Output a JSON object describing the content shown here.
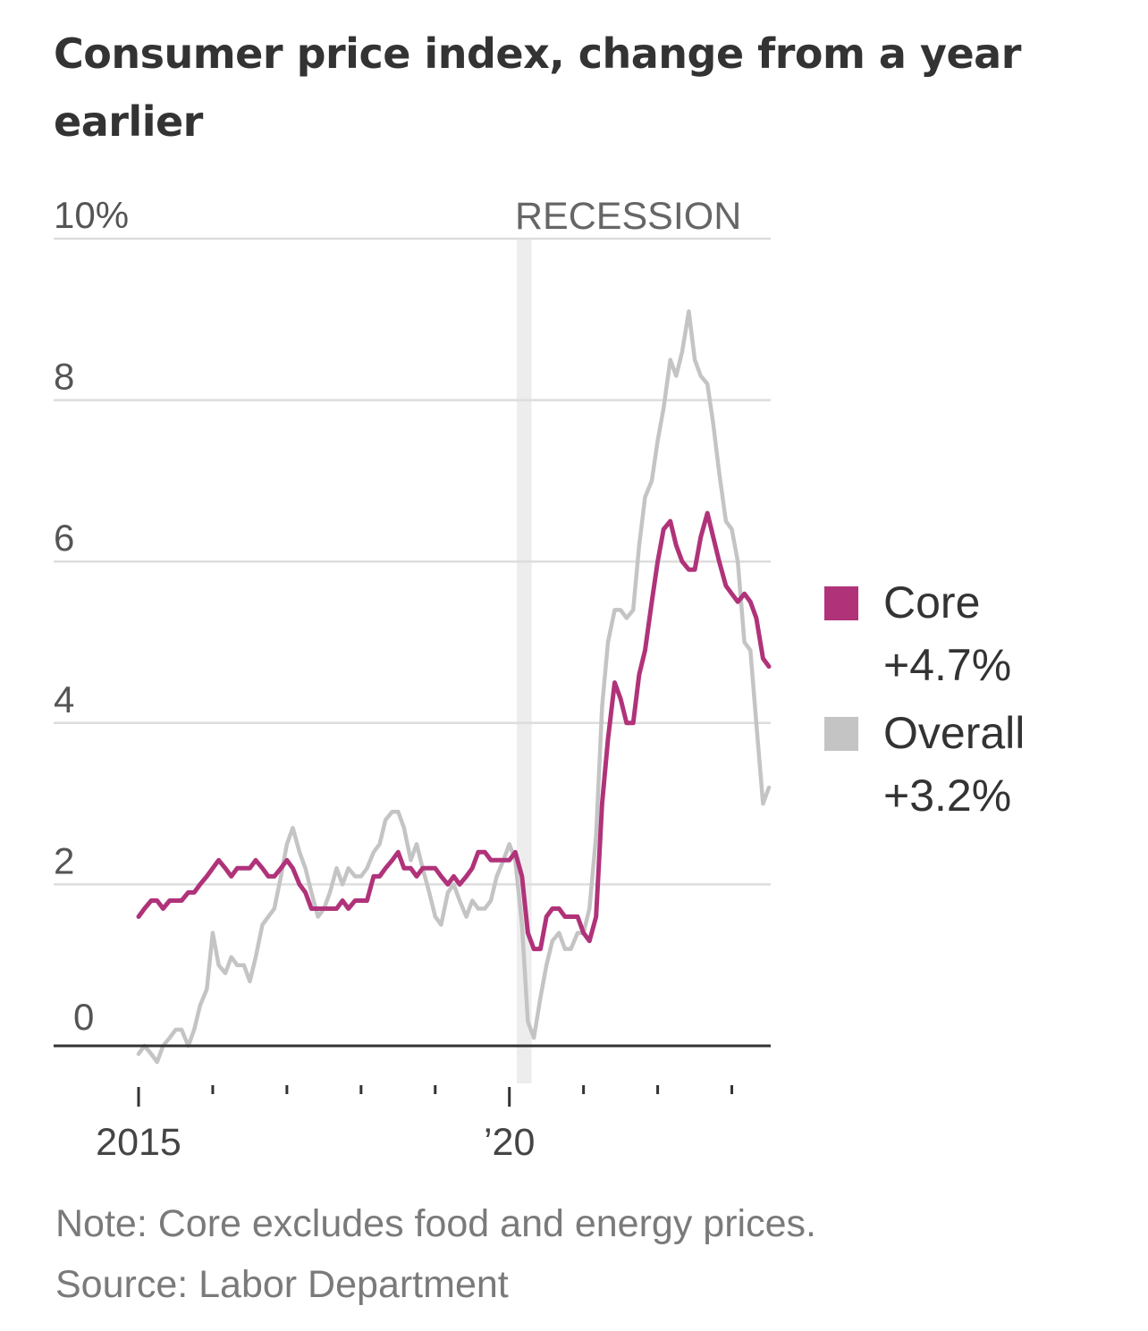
{
  "title": "Consumer price index, change from a year earlier",
  "note": "Note: Core excludes food and energy prices.",
  "source": "Source: Labor Department",
  "colors": {
    "core": "#b0337a",
    "overall": "#c4c4c4",
    "grid": "#dddddd",
    "recession": "#ededed"
  },
  "chart_data": {
    "type": "line",
    "title": "Consumer price index, change from a year earlier",
    "ylim": [
      0,
      10
    ],
    "y_ticks": [
      10,
      8,
      6,
      4,
      2,
      0
    ],
    "y_tick_labels": [
      "10%",
      "8",
      "6",
      "4",
      "2",
      "0"
    ],
    "x_range": [
      2015.0,
      2023.5
    ],
    "x_ticks": [
      2015,
      2016,
      2017,
      2018,
      2019,
      2020,
      2021,
      2022,
      2023
    ],
    "x_tick_labels": [
      {
        "x": 2015,
        "label": "2015"
      },
      {
        "x": 2020,
        "label": "’20"
      }
    ],
    "recession": {
      "label": "RECESSION",
      "start": 2020.1,
      "end": 2020.3
    },
    "legend": [
      {
        "series": "Core",
        "label": "Core",
        "value_label": "+4.7%"
      },
      {
        "series": "Overall",
        "label": "Overall",
        "value_label": "+3.2%"
      }
    ],
    "series": [
      {
        "name": "Core",
        "points": [
          [
            2015.0,
            1.6
          ],
          [
            2015.08,
            1.7
          ],
          [
            2015.17,
            1.8
          ],
          [
            2015.25,
            1.8
          ],
          [
            2015.33,
            1.7
          ],
          [
            2015.42,
            1.8
          ],
          [
            2015.5,
            1.8
          ],
          [
            2015.58,
            1.8
          ],
          [
            2015.67,
            1.9
          ],
          [
            2015.75,
            1.9
          ],
          [
            2015.83,
            2.0
          ],
          [
            2015.92,
            2.1
          ],
          [
            2016.0,
            2.2
          ],
          [
            2016.08,
            2.3
          ],
          [
            2016.17,
            2.2
          ],
          [
            2016.25,
            2.1
          ],
          [
            2016.33,
            2.2
          ],
          [
            2016.42,
            2.2
          ],
          [
            2016.5,
            2.2
          ],
          [
            2016.58,
            2.3
          ],
          [
            2016.67,
            2.2
          ],
          [
            2016.75,
            2.1
          ],
          [
            2016.83,
            2.1
          ],
          [
            2016.92,
            2.2
          ],
          [
            2017.0,
            2.3
          ],
          [
            2017.08,
            2.2
          ],
          [
            2017.17,
            2.0
          ],
          [
            2017.25,
            1.9
          ],
          [
            2017.33,
            1.7
          ],
          [
            2017.42,
            1.7
          ],
          [
            2017.5,
            1.7
          ],
          [
            2017.58,
            1.7
          ],
          [
            2017.67,
            1.7
          ],
          [
            2017.75,
            1.8
          ],
          [
            2017.83,
            1.7
          ],
          [
            2017.92,
            1.8
          ],
          [
            2018.0,
            1.8
          ],
          [
            2018.08,
            1.8
          ],
          [
            2018.17,
            2.1
          ],
          [
            2018.25,
            2.1
          ],
          [
            2018.33,
            2.2
          ],
          [
            2018.42,
            2.3
          ],
          [
            2018.5,
            2.4
          ],
          [
            2018.58,
            2.2
          ],
          [
            2018.67,
            2.2
          ],
          [
            2018.75,
            2.1
          ],
          [
            2018.83,
            2.2
          ],
          [
            2018.92,
            2.2
          ],
          [
            2019.0,
            2.2
          ],
          [
            2019.08,
            2.1
          ],
          [
            2019.17,
            2.0
          ],
          [
            2019.25,
            2.1
          ],
          [
            2019.33,
            2.0
          ],
          [
            2019.42,
            2.1
          ],
          [
            2019.5,
            2.2
          ],
          [
            2019.58,
            2.4
          ],
          [
            2019.67,
            2.4
          ],
          [
            2019.75,
            2.3
          ],
          [
            2019.83,
            2.3
          ],
          [
            2019.92,
            2.3
          ],
          [
            2020.0,
            2.3
          ],
          [
            2020.08,
            2.4
          ],
          [
            2020.17,
            2.1
          ],
          [
            2020.25,
            1.4
          ],
          [
            2020.33,
            1.2
          ],
          [
            2020.42,
            1.2
          ],
          [
            2020.5,
            1.6
          ],
          [
            2020.58,
            1.7
          ],
          [
            2020.67,
            1.7
          ],
          [
            2020.75,
            1.6
          ],
          [
            2020.83,
            1.6
          ],
          [
            2020.92,
            1.6
          ],
          [
            2021.0,
            1.4
          ],
          [
            2021.08,
            1.3
          ],
          [
            2021.17,
            1.6
          ],
          [
            2021.25,
            3.0
          ],
          [
            2021.33,
            3.8
          ],
          [
            2021.42,
            4.5
          ],
          [
            2021.5,
            4.3
          ],
          [
            2021.58,
            4.0
          ],
          [
            2021.67,
            4.0
          ],
          [
            2021.75,
            4.6
          ],
          [
            2021.83,
            4.9
          ],
          [
            2021.92,
            5.5
          ],
          [
            2022.0,
            6.0
          ],
          [
            2022.08,
            6.4
          ],
          [
            2022.17,
            6.5
          ],
          [
            2022.25,
            6.2
          ],
          [
            2022.33,
            6.0
          ],
          [
            2022.42,
            5.9
          ],
          [
            2022.5,
            5.9
          ],
          [
            2022.58,
            6.3
          ],
          [
            2022.67,
            6.6
          ],
          [
            2022.75,
            6.3
          ],
          [
            2022.83,
            6.0
          ],
          [
            2022.92,
            5.7
          ],
          [
            2023.0,
            5.6
          ],
          [
            2023.08,
            5.5
          ],
          [
            2023.17,
            5.6
          ],
          [
            2023.25,
            5.5
          ],
          [
            2023.33,
            5.3
          ],
          [
            2023.42,
            4.8
          ],
          [
            2023.5,
            4.7
          ]
        ]
      },
      {
        "name": "Overall",
        "points": [
          [
            2015.0,
            -0.1
          ],
          [
            2015.08,
            0.0
          ],
          [
            2015.17,
            -0.1
          ],
          [
            2015.25,
            -0.2
          ],
          [
            2015.33,
            0.0
          ],
          [
            2015.42,
            0.1
          ],
          [
            2015.5,
            0.2
          ],
          [
            2015.58,
            0.2
          ],
          [
            2015.67,
            0.0
          ],
          [
            2015.75,
            0.2
          ],
          [
            2015.83,
            0.5
          ],
          [
            2015.92,
            0.7
          ],
          [
            2016.0,
            1.4
          ],
          [
            2016.08,
            1.0
          ],
          [
            2016.17,
            0.9
          ],
          [
            2016.25,
            1.1
          ],
          [
            2016.33,
            1.0
          ],
          [
            2016.42,
            1.0
          ],
          [
            2016.5,
            0.8
          ],
          [
            2016.58,
            1.1
          ],
          [
            2016.67,
            1.5
          ],
          [
            2016.75,
            1.6
          ],
          [
            2016.83,
            1.7
          ],
          [
            2016.92,
            2.1
          ],
          [
            2017.0,
            2.5
          ],
          [
            2017.08,
            2.7
          ],
          [
            2017.17,
            2.4
          ],
          [
            2017.25,
            2.2
          ],
          [
            2017.33,
            1.9
          ],
          [
            2017.42,
            1.6
          ],
          [
            2017.5,
            1.7
          ],
          [
            2017.58,
            1.9
          ],
          [
            2017.67,
            2.2
          ],
          [
            2017.75,
            2.0
          ],
          [
            2017.83,
            2.2
          ],
          [
            2017.92,
            2.1
          ],
          [
            2018.0,
            2.1
          ],
          [
            2018.08,
            2.2
          ],
          [
            2018.17,
            2.4
          ],
          [
            2018.25,
            2.5
          ],
          [
            2018.33,
            2.8
          ],
          [
            2018.42,
            2.9
          ],
          [
            2018.5,
            2.9
          ],
          [
            2018.58,
            2.7
          ],
          [
            2018.67,
            2.3
          ],
          [
            2018.75,
            2.5
          ],
          [
            2018.83,
            2.2
          ],
          [
            2018.92,
            1.9
          ],
          [
            2019.0,
            1.6
          ],
          [
            2019.08,
            1.5
          ],
          [
            2019.17,
            1.9
          ],
          [
            2019.25,
            2.0
          ],
          [
            2019.33,
            1.8
          ],
          [
            2019.42,
            1.6
          ],
          [
            2019.5,
            1.8
          ],
          [
            2019.58,
            1.7
          ],
          [
            2019.67,
            1.7
          ],
          [
            2019.75,
            1.8
          ],
          [
            2019.83,
            2.1
          ],
          [
            2019.92,
            2.3
          ],
          [
            2020.0,
            2.5
          ],
          [
            2020.08,
            2.3
          ],
          [
            2020.17,
            1.5
          ],
          [
            2020.25,
            0.3
          ],
          [
            2020.33,
            0.1
          ],
          [
            2020.42,
            0.6
          ],
          [
            2020.5,
            1.0
          ],
          [
            2020.58,
            1.3
          ],
          [
            2020.67,
            1.4
          ],
          [
            2020.75,
            1.2
          ],
          [
            2020.83,
            1.2
          ],
          [
            2020.92,
            1.4
          ],
          [
            2021.0,
            1.4
          ],
          [
            2021.08,
            1.7
          ],
          [
            2021.17,
            2.6
          ],
          [
            2021.25,
            4.2
          ],
          [
            2021.33,
            5.0
          ],
          [
            2021.42,
            5.4
          ],
          [
            2021.5,
            5.4
          ],
          [
            2021.58,
            5.3
          ],
          [
            2021.67,
            5.4
          ],
          [
            2021.75,
            6.2
          ],
          [
            2021.83,
            6.8
          ],
          [
            2021.92,
            7.0
          ],
          [
            2022.0,
            7.5
          ],
          [
            2022.08,
            7.9
          ],
          [
            2022.17,
            8.5
          ],
          [
            2022.25,
            8.3
          ],
          [
            2022.33,
            8.6
          ],
          [
            2022.42,
            9.1
          ],
          [
            2022.5,
            8.5
          ],
          [
            2022.58,
            8.3
          ],
          [
            2022.67,
            8.2
          ],
          [
            2022.75,
            7.7
          ],
          [
            2022.83,
            7.1
          ],
          [
            2022.92,
            6.5
          ],
          [
            2023.0,
            6.4
          ],
          [
            2023.08,
            6.0
          ],
          [
            2023.17,
            5.0
          ],
          [
            2023.25,
            4.9
          ],
          [
            2023.33,
            4.0
          ],
          [
            2023.42,
            3.0
          ],
          [
            2023.5,
            3.2
          ]
        ]
      }
    ]
  }
}
